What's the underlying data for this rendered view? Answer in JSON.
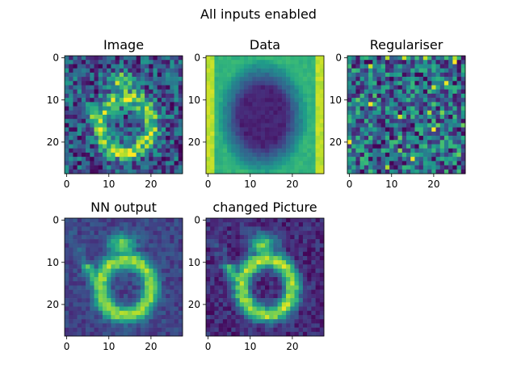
{
  "figure": {
    "suptitle": "All inputs enabled"
  },
  "chart_data": [
    {
      "type": "heatmap",
      "title": "Image",
      "colormap": "viridis",
      "grid": false,
      "xlim": [
        -0.5,
        27.5
      ],
      "ylim": [
        27.5,
        -0.5
      ],
      "xticks": [
        "0",
        "10",
        "20"
      ],
      "yticks": [
        "0",
        "10",
        "20"
      ],
      "size": [
        28,
        28
      ],
      "pattern": "noisy-digit"
    },
    {
      "type": "heatmap",
      "title": "Data",
      "colormap": "viridis",
      "grid": false,
      "xlim": [
        -0.5,
        27.5
      ],
      "ylim": [
        27.5,
        -0.5
      ],
      "xticks": [
        "0",
        "10",
        "20"
      ],
      "yticks": [
        "0",
        "10",
        "20"
      ],
      "size": [
        28,
        28
      ],
      "pattern": "dark-ellipse-on-bright"
    },
    {
      "type": "heatmap",
      "title": "Regulariser",
      "colormap": "viridis",
      "grid": false,
      "xlim": [
        -0.5,
        27.5
      ],
      "ylim": [
        27.5,
        -0.5
      ],
      "xticks": [
        "0",
        "10",
        "20"
      ],
      "yticks": [
        "0",
        "10",
        "20"
      ],
      "size": [
        28,
        28
      ],
      "pattern": "uniform-noise"
    },
    {
      "type": "heatmap",
      "title": "NN output",
      "colormap": "viridis",
      "grid": false,
      "xlim": [
        -0.5,
        27.5
      ],
      "ylim": [
        27.5,
        -0.5
      ],
      "xticks": [
        "0",
        "10",
        "20"
      ],
      "yticks": [
        "0",
        "10",
        "20"
      ],
      "size": [
        28,
        28
      ],
      "pattern": "smooth-digit"
    },
    {
      "type": "heatmap",
      "title": "changed Picture",
      "colormap": "viridis",
      "grid": false,
      "xlim": [
        -0.5,
        27.5
      ],
      "ylim": [
        27.5,
        -0.5
      ],
      "xticks": [
        "0",
        "10",
        "20"
      ],
      "yticks": [
        "0",
        "10",
        "20"
      ],
      "size": [
        28,
        28
      ],
      "pattern": "smooth-digit-dark"
    }
  ]
}
